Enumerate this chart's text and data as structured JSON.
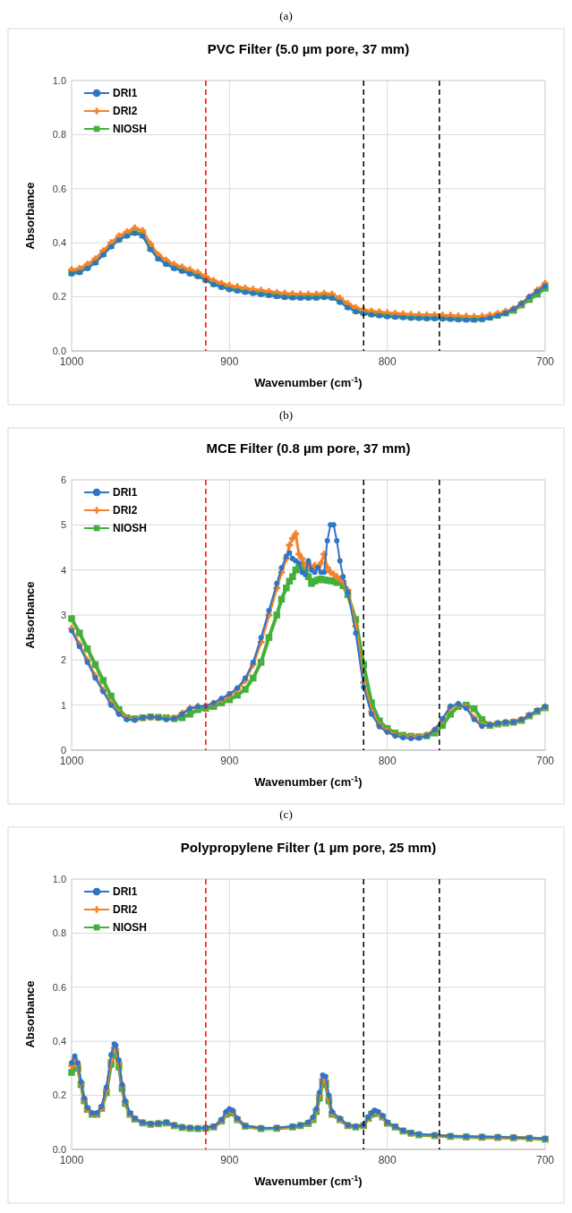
{
  "chart_data": [
    {
      "type": "line",
      "title": "PVC Filter (5.0 µm pore, 37 mm)",
      "xlabel": "Wavenumber (cm$^{-1}$)",
      "ylabel": "Absorbance",
      "annotations": [
        "(a)"
      ],
      "x": [
        1000,
        995,
        990,
        985,
        980,
        975,
        970,
        965,
        960,
        955,
        950,
        945,
        940,
        935,
        930,
        925,
        920,
        915,
        910,
        905,
        900,
        895,
        890,
        885,
        880,
        875,
        870,
        865,
        860,
        855,
        850,
        845,
        840,
        835,
        830,
        825,
        820,
        815,
        810,
        805,
        800,
        795,
        790,
        785,
        780,
        775,
        770,
        765,
        760,
        755,
        750,
        745,
        740,
        735,
        730,
        725,
        720,
        715,
        710,
        705,
        700
      ],
      "series": [
        {
          "name": "DRI1",
          "color": "#2e75c8",
          "marker": "circle",
          "values": [
            0.285,
            0.29,
            0.305,
            0.325,
            0.355,
            0.385,
            0.41,
            0.425,
            0.435,
            0.425,
            0.375,
            0.34,
            0.32,
            0.305,
            0.295,
            0.285,
            0.275,
            0.26,
            0.245,
            0.235,
            0.227,
            0.222,
            0.217,
            0.213,
            0.209,
            0.205,
            0.201,
            0.198,
            0.196,
            0.195,
            0.195,
            0.195,
            0.198,
            0.195,
            0.18,
            0.16,
            0.145,
            0.138,
            0.133,
            0.13,
            0.127,
            0.125,
            0.123,
            0.121,
            0.12,
            0.119,
            0.119,
            0.118,
            0.117,
            0.115,
            0.114,
            0.114,
            0.116,
            0.122,
            0.13,
            0.14,
            0.155,
            0.175,
            0.2,
            0.22,
            0.24
          ]
        },
        {
          "name": "DRI2",
          "color": "#f5822a",
          "marker": "cross",
          "values": [
            0.3,
            0.305,
            0.32,
            0.34,
            0.37,
            0.4,
            0.425,
            0.44,
            0.455,
            0.445,
            0.395,
            0.355,
            0.335,
            0.32,
            0.31,
            0.3,
            0.29,
            0.275,
            0.26,
            0.25,
            0.242,
            0.237,
            0.232,
            0.228,
            0.224,
            0.22,
            0.216,
            0.213,
            0.211,
            0.21,
            0.21,
            0.21,
            0.213,
            0.21,
            0.195,
            0.175,
            0.16,
            0.152,
            0.147,
            0.144,
            0.141,
            0.139,
            0.137,
            0.135,
            0.134,
            0.133,
            0.133,
            0.132,
            0.131,
            0.129,
            0.128,
            0.127,
            0.128,
            0.132,
            0.138,
            0.146,
            0.156,
            0.175,
            0.2,
            0.225,
            0.25
          ]
        },
        {
          "name": "NIOSH",
          "color": "#44b03c",
          "marker": "square",
          "values": [
            0.29,
            0.295,
            0.31,
            0.33,
            0.36,
            0.39,
            0.415,
            0.43,
            0.44,
            0.43,
            0.38,
            0.345,
            0.325,
            0.31,
            0.3,
            0.29,
            0.28,
            0.265,
            0.25,
            0.24,
            0.232,
            0.227,
            0.222,
            0.218,
            0.214,
            0.21,
            0.206,
            0.203,
            0.201,
            0.2,
            0.2,
            0.2,
            0.203,
            0.2,
            0.185,
            0.165,
            0.15,
            0.143,
            0.138,
            0.135,
            0.132,
            0.13,
            0.128,
            0.126,
            0.125,
            0.124,
            0.124,
            0.123,
            0.122,
            0.12,
            0.119,
            0.118,
            0.12,
            0.125,
            0.132,
            0.14,
            0.15,
            0.17,
            0.19,
            0.21,
            0.232
          ]
        }
      ],
      "xlim": [
        1000,
        700
      ],
      "xticks": [
        1000,
        900,
        800,
        700
      ],
      "ylim": [
        0,
        1
      ],
      "yticks": [
        {
          "value": 0,
          "label": "0.0"
        },
        {
          "value": 0.2,
          "label": "0.2"
        },
        {
          "value": 0.4,
          "label": "0.4"
        },
        {
          "value": 0.6,
          "label": "0.6"
        },
        {
          "value": 0.8,
          "label": "0.8"
        },
        {
          "value": 1,
          "label": "1.0"
        }
      ],
      "ref_lines": [
        {
          "axis": "x",
          "value": 915,
          "color": "#ff0000",
          "line_style": "dashed"
        },
        {
          "axis": "x",
          "value": 815,
          "color": "#000000",
          "line_style": "dashed"
        },
        {
          "axis": "x",
          "value": 767,
          "color": "#000000",
          "line_style": "dashed"
        }
      ],
      "grid": true,
      "legend": "top left"
    },
    {
      "type": "line",
      "title": "MCE Filter (0.8 µm pore, 37 mm)",
      "xlabel": "Wavenumber (cm$^{-1}$)",
      "ylabel": "Absorbance",
      "annotations": [
        "(b)"
      ],
      "x": [
        1000,
        995,
        990,
        985,
        980,
        975,
        970,
        965,
        960,
        955,
        950,
        945,
        940,
        935,
        930,
        925,
        920,
        915,
        910,
        905,
        900,
        895,
        890,
        885,
        880,
        875,
        870,
        867,
        864,
        862,
        860,
        858,
        856,
        854,
        852,
        850,
        848,
        846,
        844,
        842,
        840,
        838,
        836,
        834,
        832,
        830,
        828,
        825,
        820,
        815,
        810,
        805,
        800,
        795,
        790,
        785,
        780,
        775,
        770,
        765,
        760,
        755,
        750,
        745,
        740,
        735,
        730,
        725,
        720,
        715,
        710,
        705,
        700
      ],
      "series": [
        {
          "name": "DRI1",
          "color": "#2e75c8",
          "marker": "circle",
          "values": [
            2.65,
            2.3,
            1.95,
            1.6,
            1.3,
            1.0,
            0.8,
            0.68,
            0.67,
            0.72,
            0.74,
            0.72,
            0.68,
            0.7,
            0.8,
            0.92,
            0.97,
            0.98,
            1.05,
            1.15,
            1.25,
            1.38,
            1.6,
            1.95,
            2.5,
            3.1,
            3.7,
            4.05,
            4.3,
            4.38,
            4.25,
            4.2,
            4.15,
            3.95,
            3.9,
            4.2,
            4.0,
            3.95,
            4.05,
            3.95,
            3.95,
            4.65,
            5.0,
            5.0,
            4.65,
            4.2,
            3.85,
            3.5,
            2.6,
            1.4,
            0.8,
            0.52,
            0.4,
            0.32,
            0.28,
            0.26,
            0.27,
            0.32,
            0.45,
            0.7,
            0.98,
            1.03,
            0.93,
            0.68,
            0.53,
            0.56,
            0.6,
            0.62,
            0.62,
            0.68,
            0.78,
            0.88,
            0.97
          ]
        },
        {
          "name": "DRI2",
          "color": "#f5822a",
          "marker": "cross",
          "values": [
            2.7,
            2.35,
            2.0,
            1.65,
            1.33,
            1.03,
            0.82,
            0.7,
            0.68,
            0.72,
            0.73,
            0.72,
            0.7,
            0.72,
            0.82,
            0.93,
            0.97,
            0.98,
            1.04,
            1.13,
            1.22,
            1.35,
            1.55,
            1.9,
            2.4,
            3.0,
            3.6,
            3.95,
            4.25,
            4.55,
            4.7,
            4.8,
            4.35,
            4.25,
            4.1,
            4.15,
            4.05,
            4.1,
            4.05,
            4.15,
            4.35,
            4.05,
            3.95,
            3.9,
            3.85,
            3.8,
            3.75,
            3.55,
            2.75,
            1.5,
            0.85,
            0.55,
            0.42,
            0.33,
            0.3,
            0.29,
            0.3,
            0.34,
            0.45,
            0.68,
            0.95,
            1.02,
            0.95,
            0.72,
            0.55,
            0.57,
            0.6,
            0.62,
            0.63,
            0.68,
            0.78,
            0.88,
            0.96
          ]
        },
        {
          "name": "NIOSH",
          "color": "#44b03c",
          "marker": "square",
          "values": [
            2.92,
            2.6,
            2.25,
            1.9,
            1.55,
            1.2,
            0.9,
            0.72,
            0.7,
            0.72,
            0.74,
            0.73,
            0.72,
            0.7,
            0.72,
            0.8,
            0.9,
            0.93,
            0.97,
            1.05,
            1.12,
            1.22,
            1.35,
            1.6,
            1.95,
            2.5,
            3.0,
            3.35,
            3.6,
            3.75,
            3.85,
            4.0,
            4.05,
            4.1,
            4.05,
            3.85,
            3.7,
            3.75,
            3.78,
            3.8,
            3.78,
            3.77,
            3.76,
            3.75,
            3.72,
            3.75,
            3.65,
            3.45,
            2.9,
            1.9,
            1.05,
            0.65,
            0.48,
            0.38,
            0.33,
            0.31,
            0.3,
            0.32,
            0.38,
            0.55,
            0.8,
            0.97,
            1.0,
            0.92,
            0.68,
            0.55,
            0.58,
            0.6,
            0.62,
            0.66,
            0.76,
            0.86,
            0.94
          ]
        }
      ],
      "xlim": [
        1000,
        700
      ],
      "xticks": [
        1000,
        900,
        800,
        700
      ],
      "ylim": [
        0,
        6
      ],
      "yticks": [
        0,
        1,
        2,
        3,
        4,
        5,
        6
      ],
      "ref_lines": [
        {
          "axis": "x",
          "value": 915,
          "color": "#ff0000",
          "line_style": "dashed"
        },
        {
          "axis": "x",
          "value": 815,
          "color": "#000000",
          "line_style": "dashed"
        },
        {
          "axis": "x",
          "value": 767,
          "color": "#000000",
          "line_style": "dashed"
        }
      ],
      "grid": true,
      "legend": "top left"
    },
    {
      "type": "line",
      "title": "Polypropylene Filter (1 µm pore, 25 mm)",
      "xlabel": "Wavenumber (cm$^{-1}$)",
      "ylabel": "Absorbance",
      "annotations": [
        "(c)"
      ],
      "x": [
        1000,
        998,
        996,
        994,
        992,
        990,
        987,
        984,
        981,
        978,
        975,
        973,
        972,
        970,
        968,
        966,
        963,
        960,
        955,
        950,
        945,
        940,
        935,
        930,
        925,
        920,
        915,
        910,
        905,
        902,
        900,
        898,
        895,
        890,
        880,
        870,
        860,
        855,
        850,
        847,
        845,
        843,
        841,
        839,
        837,
        835,
        830,
        825,
        820,
        815,
        812,
        810,
        808,
        806,
        803,
        800,
        795,
        790,
        785,
        780,
        770,
        760,
        750,
        740,
        730,
        720,
        710,
        700
      ],
      "series": [
        {
          "name": "DRI1",
          "color": "#2e75c8",
          "marker": "circle",
          "values": [
            0.32,
            0.345,
            0.32,
            0.25,
            0.19,
            0.155,
            0.135,
            0.135,
            0.16,
            0.23,
            0.35,
            0.39,
            0.385,
            0.33,
            0.24,
            0.18,
            0.135,
            0.115,
            0.1,
            0.095,
            0.097,
            0.1,
            0.09,
            0.083,
            0.08,
            0.079,
            0.08,
            0.085,
            0.11,
            0.14,
            0.15,
            0.145,
            0.115,
            0.088,
            0.079,
            0.08,
            0.085,
            0.09,
            0.1,
            0.12,
            0.15,
            0.21,
            0.275,
            0.27,
            0.2,
            0.14,
            0.115,
            0.09,
            0.085,
            0.09,
            0.12,
            0.135,
            0.145,
            0.14,
            0.125,
            0.1,
            0.085,
            0.07,
            0.062,
            0.056,
            0.053,
            0.05,
            0.048,
            0.047,
            0.046,
            0.045,
            0.043,
            0.04
          ]
        },
        {
          "name": "DRI2",
          "color": "#f5822a",
          "marker": "cross",
          "values": [
            0.31,
            0.335,
            0.31,
            0.245,
            0.185,
            0.15,
            0.132,
            0.132,
            0.155,
            0.22,
            0.33,
            0.375,
            0.37,
            0.32,
            0.235,
            0.175,
            0.133,
            0.113,
            0.099,
            0.094,
            0.096,
            0.099,
            0.089,
            0.082,
            0.079,
            0.078,
            0.079,
            0.084,
            0.108,
            0.135,
            0.145,
            0.14,
            0.112,
            0.087,
            0.078,
            0.079,
            0.084,
            0.089,
            0.098,
            0.115,
            0.145,
            0.2,
            0.26,
            0.255,
            0.19,
            0.135,
            0.112,
            0.089,
            0.084,
            0.089,
            0.117,
            0.132,
            0.14,
            0.136,
            0.122,
            0.098,
            0.084,
            0.069,
            0.061,
            0.055,
            0.052,
            0.049,
            0.047,
            0.046,
            0.045,
            0.044,
            0.042,
            0.039
          ]
        },
        {
          "name": "NIOSH",
          "color": "#44b03c",
          "marker": "square",
          "values": [
            0.285,
            0.315,
            0.3,
            0.24,
            0.18,
            0.148,
            0.13,
            0.13,
            0.152,
            0.21,
            0.315,
            0.355,
            0.35,
            0.305,
            0.225,
            0.17,
            0.13,
            0.112,
            0.098,
            0.093,
            0.095,
            0.098,
            0.088,
            0.081,
            0.078,
            0.077,
            0.078,
            0.083,
            0.105,
            0.13,
            0.14,
            0.135,
            0.11,
            0.086,
            0.077,
            0.078,
            0.083,
            0.088,
            0.096,
            0.11,
            0.14,
            0.19,
            0.245,
            0.24,
            0.18,
            0.13,
            0.11,
            0.088,
            0.083,
            0.088,
            0.115,
            0.13,
            0.137,
            0.133,
            0.12,
            0.097,
            0.083,
            0.068,
            0.06,
            0.054,
            0.051,
            0.048,
            0.046,
            0.045,
            0.044,
            0.043,
            0.041,
            0.038
          ]
        }
      ],
      "xlim": [
        1000,
        700
      ],
      "xticks": [
        1000,
        900,
        800,
        700
      ],
      "ylim": [
        0,
        1
      ],
      "yticks": [
        {
          "value": 0,
          "label": "0.0"
        },
        {
          "value": 0.2,
          "label": "0.2"
        },
        {
          "value": 0.4,
          "label": "0.4"
        },
        {
          "value": 0.6,
          "label": "0.6"
        },
        {
          "value": 0.8,
          "label": "0.8"
        },
        {
          "value": 1,
          "label": "1.0"
        }
      ],
      "ref_lines": [
        {
          "axis": "x",
          "value": 915,
          "color": "#ff0000",
          "line_style": "dashed"
        },
        {
          "axis": "x",
          "value": 815,
          "color": "#000000",
          "line_style": "dashed"
        },
        {
          "axis": "x",
          "value": 767,
          "color": "#000000",
          "line_style": "dashed"
        }
      ],
      "grid": true,
      "legend": "top left"
    }
  ]
}
